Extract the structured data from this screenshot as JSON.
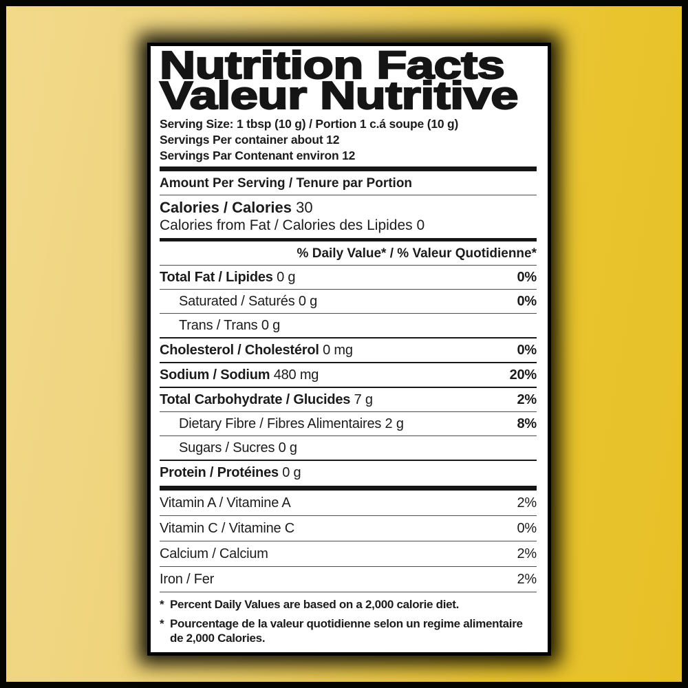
{
  "page": {
    "frame_color": "#050502",
    "background_gold": "#e9c42c",
    "background_gold_light": "#f2d98b",
    "label_background": "#ffffff",
    "text_color": "#1b1b1b"
  },
  "label": {
    "title_en": "Nutrition Facts",
    "title_fr": "Valeur Nutritive",
    "serving_size": "Serving Size: 1 tbsp (10 g) / Portion 1 c.á soupe (10 g)",
    "servings_en": "Servings Per container about 12",
    "servings_fr": "Servings Par Contenant environ 12",
    "amount_header": "Amount Per Serving / Tenure par Portion",
    "calories_label": "Calories / Calories",
    "calories_value": "30",
    "calories_from_fat": "Calories from Fat / Calories des Lipides 0",
    "daily_value_header": "% Daily Value* / % Valeur Quotidienne*",
    "nutrients": [
      {
        "name": "Total Fat / Lipides",
        "amount": "0 g",
        "percent": "0%",
        "bold": true,
        "indent": false,
        "sep": "thin"
      },
      {
        "name": "Saturated / Saturés",
        "amount": "0 g",
        "percent": "0%",
        "bold": false,
        "indent": true,
        "sep": "thin"
      },
      {
        "name": "Trans / Trans",
        "amount": "0 g",
        "percent": "",
        "bold": false,
        "indent": true,
        "sep": "thin"
      },
      {
        "name": "Cholesterol / Cholestérol",
        "amount": "0 mg",
        "percent": "0%",
        "bold": true,
        "indent": false,
        "sep": "major"
      },
      {
        "name": "Sodium / Sodium",
        "amount": "480 mg",
        "percent": "20%",
        "bold": true,
        "indent": false,
        "sep": "major"
      },
      {
        "name": "Total Carbohydrate / Glucides",
        "amount": "7 g",
        "percent": "2%",
        "bold": true,
        "indent": false,
        "sep": "major"
      },
      {
        "name": "Dietary Fibre / Fibres Alimentaires",
        "amount": "2 g",
        "percent": "8%",
        "bold": false,
        "indent": true,
        "sep": "thin"
      },
      {
        "name": "Sugars / Sucres",
        "amount": "0 g",
        "percent": "",
        "bold": false,
        "indent": true,
        "sep": "thin"
      },
      {
        "name": "Protein / Protéines",
        "amount": "0 g",
        "percent": "",
        "bold": true,
        "indent": false,
        "sep": "major"
      }
    ],
    "vitamins": [
      {
        "name": "Vitamin A / Vitamine A",
        "percent": "2%"
      },
      {
        "name": "Vitamin C / Vitamine C",
        "percent": "0%"
      },
      {
        "name": "Calcium / Calcium",
        "percent": "2%"
      },
      {
        "name": "Iron / Fer",
        "percent": "2%"
      }
    ],
    "footnote_marker": "*",
    "footnotes": [
      "Percent Daily Values are based on a 2,000 calorie diet.",
      "Pourcentage de la valeur quotidienne selon un regime alimentaire de 2,000 Calories."
    ]
  }
}
